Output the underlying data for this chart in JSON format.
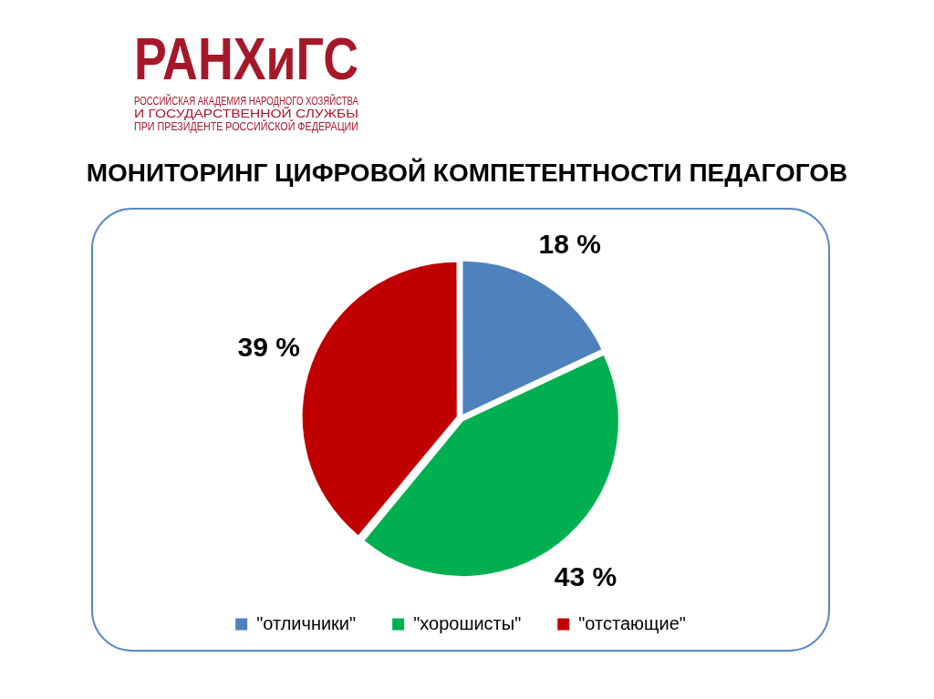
{
  "chart_data": {
    "type": "pie",
    "title": "МОНИТОРИНГ ЦИФРОВОЙ КОМПЕТЕНТНОСТИ ПЕДАГОГОВ",
    "annotations": [
      "РАНХиГС",
      "РОССИЙСКАЯ АКАДЕМИЯ НАРОДНОГО ХОЗЯЙСТВА",
      "И ГОСУДАРСТВЕННОЙ СЛУЖБЫ",
      "ПРИ ПРЕЗИДЕНТЕ РОССИЙСКОЙ ФЕДЕРАЦИИ"
    ],
    "categories": [
      "\"отличники\"",
      "\"хорошисты\"",
      "\"отстающие\""
    ],
    "values": [
      18,
      43,
      39
    ],
    "colors": [
      "#4f81bd",
      "#00b050",
      "#c00000"
    ],
    "value_labels": [
      "18 %",
      "43 %",
      "39 %"
    ],
    "legend": "bottom"
  }
}
